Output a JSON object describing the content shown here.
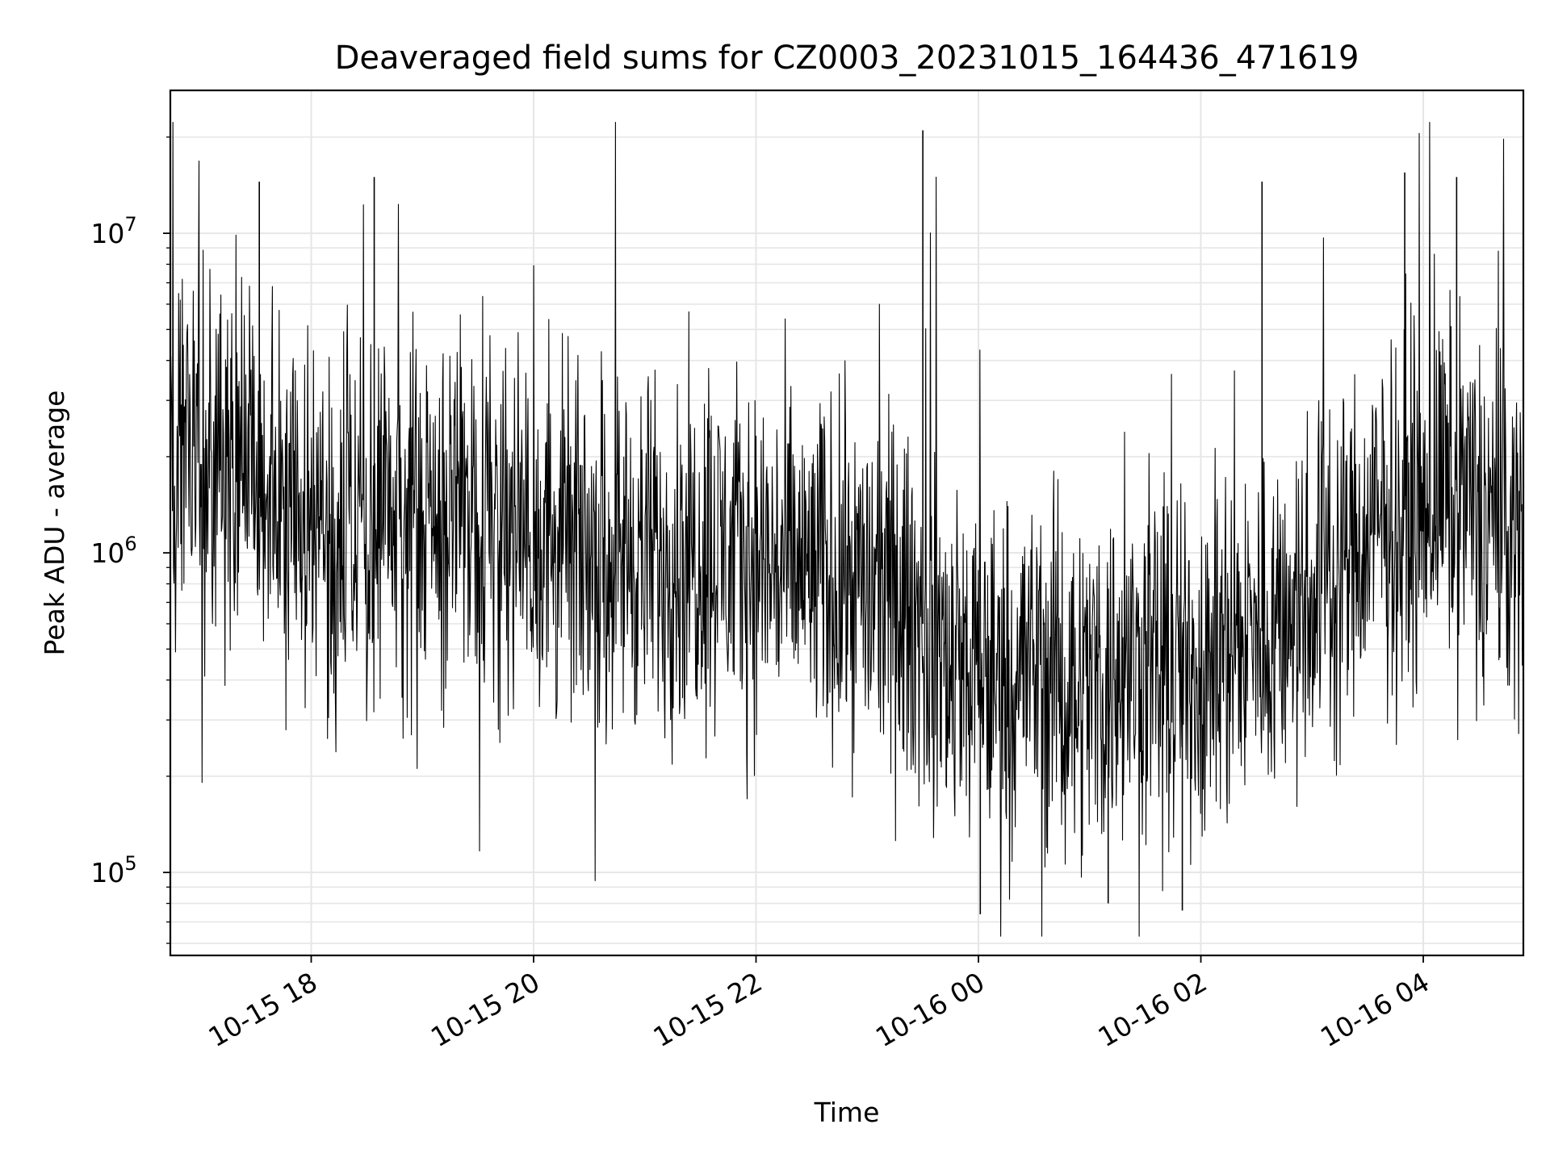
{
  "chart_data": {
    "type": "line",
    "title": "Deaveraged field sums for CZ0003_20231015_164436_471619",
    "xlabel": "Time",
    "ylabel": "Peak ADU - average",
    "y_scale": "log",
    "ylim": [
      55000,
      28000000
    ],
    "xlim": [
      "2023-10-15 16:44",
      "2023-10-16 04:54"
    ],
    "grid": true,
    "colors": {
      "line": "#000000",
      "grid": "#e6e6e6",
      "axes": "#000000"
    },
    "x_ticks": [
      "10-15 18",
      "10-15 20",
      "10-15 22",
      "10-16 00",
      "10-16 02",
      "10-16 04"
    ],
    "y_ticks": [
      {
        "base": "10",
        "exp": "5",
        "value": 100000
      },
      {
        "base": "10",
        "exp": "6",
        "value": 1000000
      },
      {
        "base": "10",
        "exp": "7",
        "value": 10000000
      }
    ],
    "series": [
      {
        "x": [
          "2023-10-15 16:44",
          "2023-10-15 17:00",
          "2023-10-15 17:15",
          "2023-10-15 17:30",
          "2023-10-15 17:45",
          "2023-10-15 18:00",
          "2023-10-15 18:15",
          "2023-10-15 18:30",
          "2023-10-15 18:45",
          "2023-10-15 19:00",
          "2023-10-15 19:15",
          "2023-10-15 19:30",
          "2023-10-15 19:45",
          "2023-10-15 20:00",
          "2023-10-15 20:15",
          "2023-10-15 20:30",
          "2023-10-15 20:45",
          "2023-10-15 21:00",
          "2023-10-15 21:15",
          "2023-10-15 21:30",
          "2023-10-15 21:45",
          "2023-10-15 22:00",
          "2023-10-15 22:15",
          "2023-10-15 22:30",
          "2023-10-15 22:45",
          "2023-10-15 23:00",
          "2023-10-15 23:15",
          "2023-10-15 23:30",
          "2023-10-15 23:45",
          "2023-10-16 00:00",
          "2023-10-16 00:15",
          "2023-10-16 00:30",
          "2023-10-16 00:45",
          "2023-10-16 01:00",
          "2023-10-16 01:15",
          "2023-10-16 01:30",
          "2023-10-16 01:45",
          "2023-10-16 02:00",
          "2023-10-16 02:15",
          "2023-10-16 02:30",
          "2023-10-16 02:45",
          "2023-10-16 03:00",
          "2023-10-16 03:15",
          "2023-10-16 03:30",
          "2023-10-16 03:45",
          "2023-10-16 04:00",
          "2023-10-16 04:15",
          "2023-10-16 04:30",
          "2023-10-16 04:45",
          "2023-10-16 04:54"
        ],
        "y": [
          2500000,
          1600000,
          1800000,
          1500000,
          1400000,
          1300000,
          1200000,
          1250000,
          1200000,
          1150000,
          1300000,
          1500000,
          1300000,
          1100000,
          1050000,
          1000000,
          1050000,
          950000,
          1000000,
          1050000,
          1000000,
          950000,
          900000,
          850000,
          850000,
          800000,
          700000,
          600000,
          450000,
          400000,
          420000,
          450000,
          380000,
          400000,
          420000,
          450000,
          420000,
          450000,
          500000,
          550000,
          650000,
          800000,
          950000,
          1100000,
          1300000,
          1500000,
          1600000,
          1400000,
          1200000,
          1100000
        ]
      }
    ],
    "peaks": [
      {
        "x": "2023-10-15 23:30",
        "y": 21000000
      },
      {
        "x": "2023-10-15 18:34",
        "y": 15000000
      },
      {
        "x": "2023-10-16 03:50",
        "y": 15500000
      },
      {
        "x": "2023-10-16 04:18",
        "y": 15000000
      },
      {
        "x": "2023-10-15 17:32",
        "y": 14500000
      },
      {
        "x": "2023-10-16 02:33",
        "y": 14500000
      },
      {
        "x": "2023-10-16 00:01",
        "y": 74000
      },
      {
        "x": "2023-10-16 01:50",
        "y": 76000
      },
      {
        "x": "2023-10-16 01:10",
        "y": 80000
      }
    ]
  }
}
